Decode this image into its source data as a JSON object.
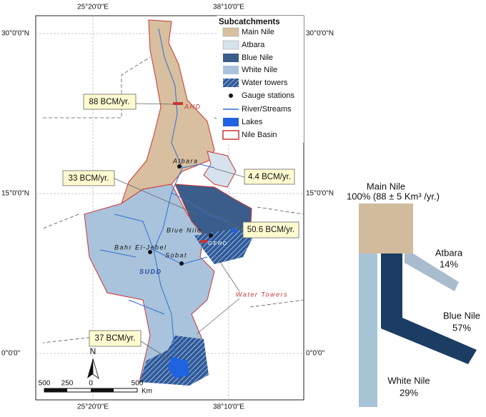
{
  "graticule": {
    "top": [
      "25°20'0\"E",
      "38°10'0\"E"
    ],
    "bottom": [
      "25°20'0\"E",
      "38°10'0\"E"
    ],
    "left": [
      "30°0'0\"N",
      "15°0'0\"N",
      "0°0'0\""
    ],
    "right": [
      "30°0'0\"N",
      "15°0'0\"N",
      "0°0'0\""
    ]
  },
  "legend": {
    "title": "Subcatchments",
    "items": [
      "Main Nile",
      "Atbara",
      "Blue Nile",
      "White Nile",
      "Water towers",
      "Gauge stations",
      "River/Streams",
      "Lakes",
      "Nile Basin"
    ]
  },
  "callouts": [
    "88 BCM/yr.",
    "33 BCM/yr.",
    "4.4 BCM/yr.",
    "50.6 BCM/yr.",
    "37 BCM/yr."
  ],
  "places": [
    "AHD",
    "Atbara",
    "Blue Nile",
    "GERD",
    "Bahr El-Jebel",
    "Sobat",
    "SUDD",
    "Water Towers"
  ],
  "scale": {
    "ticks": [
      "500",
      "250",
      "0",
      "500"
    ],
    "unit": "Km"
  },
  "north": "N",
  "flow": {
    "title": "Main Nile",
    "total": "100% (88 ± 5 Km³ /yr.)",
    "branches": [
      {
        "name": "Atbara",
        "share": "14%"
      },
      {
        "name": "Blue Nile",
        "share": "57%"
      },
      {
        "name": "White Nile",
        "share": "29%"
      }
    ]
  }
}
